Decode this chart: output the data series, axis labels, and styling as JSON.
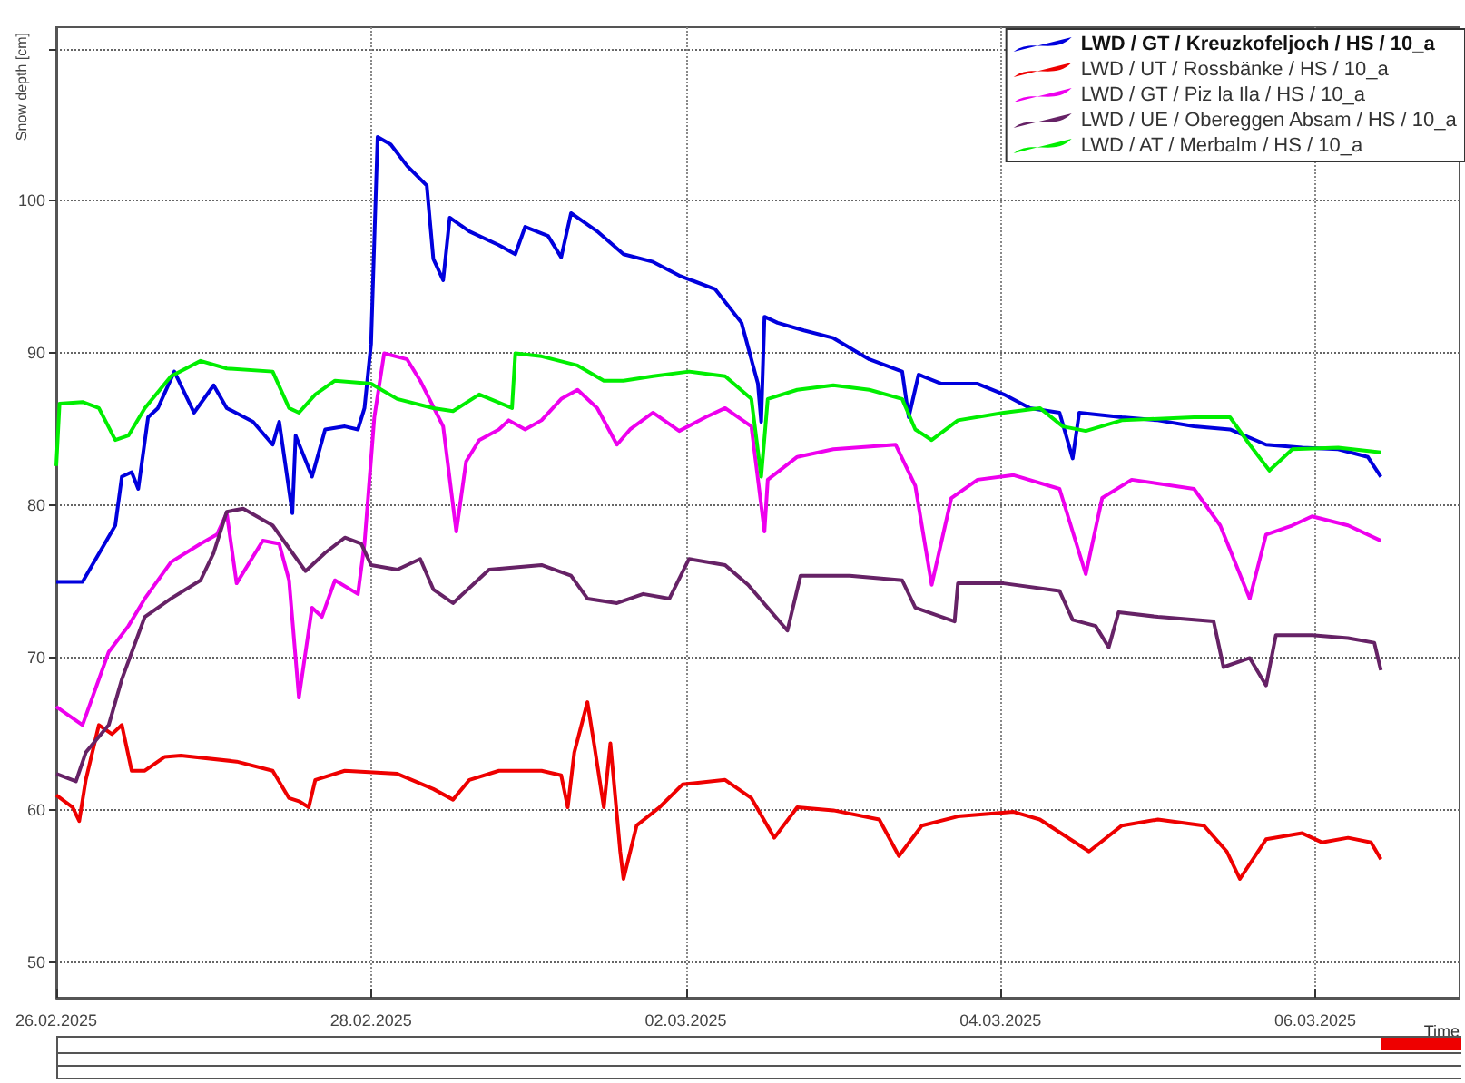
{
  "chart_data": {
    "type": "line",
    "ylabel": "Snow depth [cm]",
    "xlabel": "Time",
    "xlim": [
      "2025-02-26T00:00",
      "2025-03-06T22:00"
    ],
    "xticks": [
      {
        "value": "2025-02-26",
        "label": "26.02.2025"
      },
      {
        "value": "2025-02-28",
        "label": "28.02.2025"
      },
      {
        "value": "2025-03-02",
        "label": "02.03.2025"
      },
      {
        "value": "2025-03-04",
        "label": "04.03.2025"
      },
      {
        "value": "2025-03-06",
        "label": "06.03.2025"
      }
    ],
    "ylim": [
      47.7,
      111.4
    ],
    "yticks": [
      50,
      60,
      70,
      80,
      90,
      100,
      {
        "value": 110,
        "label": null
      }
    ],
    "grid": true,
    "legend": "top right",
    "marker": "none",
    "line_style": "solid",
    "series": [
      {
        "name": "LWD / GT / Kreuzkofeljoch / HS / 10_a",
        "color": "#0000dd",
        "x": [
          "2025-02-26T00:00",
          "2025-02-26T04:00",
          "2025-02-26T09:00",
          "2025-02-26T10:00",
          "2025-02-26T11:30",
          "2025-02-26T12:30",
          "2025-02-26T14:00",
          "2025-02-26T15:30",
          "2025-02-26T18:00",
          "2025-02-26T21:00",
          "2025-02-27T00:00",
          "2025-02-27T02:00",
          "2025-02-27T06:00",
          "2025-02-27T09:00",
          "2025-02-27T10:00",
          "2025-02-27T12:00",
          "2025-02-27T12:30",
          "2025-02-27T15:00",
          "2025-02-27T17:00",
          "2025-02-27T20:00",
          "2025-02-27T22:00",
          "2025-02-27T23:00",
          "2025-02-28T00:00",
          "2025-02-28T01:00",
          "2025-02-28T03:00",
          "2025-02-28T05:30",
          "2025-02-28T08:30",
          "2025-02-28T09:30",
          "2025-02-28T11:00",
          "2025-02-28T12:00",
          "2025-02-28T15:00",
          "2025-02-28T19:30",
          "2025-02-28T22:00",
          "2025-02-28T23:30",
          "2025-03-01T03:00",
          "2025-03-01T05:00",
          "2025-03-01T06:30",
          "2025-03-01T10:30",
          "2025-03-01T14:30",
          "2025-03-01T19:00",
          "2025-03-01T23:00",
          "2025-03-02T04:30",
          "2025-03-02T08:30",
          "2025-03-02T11:00",
          "2025-03-02T11:30",
          "2025-03-02T12:00",
          "2025-03-02T14:00",
          "2025-03-02T18:00",
          "2025-03-02T22:30",
          "2025-03-03T04:00",
          "2025-03-03T09:00",
          "2025-03-03T10:00",
          "2025-03-03T11:30",
          "2025-03-03T15:00",
          "2025-03-03T20:30",
          "2025-03-04T00:30",
          "2025-03-04T04:30",
          "2025-03-04T09:00",
          "2025-03-04T11:00",
          "2025-03-04T12:00",
          "2025-03-04T18:30",
          "2025-03-05T00:00",
          "2025-03-05T05:30",
          "2025-03-05T11:00",
          "2025-03-05T16:30",
          "2025-03-05T22:00",
          "2025-03-06T03:30",
          "2025-03-06T08:00",
          "2025-03-06T10:00"
        ],
        "values": [
          75.0,
          75.0,
          78.7,
          81.9,
          82.2,
          81.1,
          85.8,
          86.4,
          88.8,
          86.1,
          87.9,
          86.4,
          85.5,
          84.0,
          85.5,
          79.5,
          84.6,
          81.9,
          85.0,
          85.2,
          85.0,
          86.4,
          90.6,
          104.2,
          103.7,
          102.3,
          101.0,
          96.2,
          94.8,
          98.9,
          98.0,
          97.1,
          96.5,
          98.3,
          97.7,
          96.3,
          99.2,
          98.0,
          96.5,
          96.0,
          95.1,
          94.2,
          92.0,
          88.0,
          85.5,
          92.4,
          92.0,
          91.5,
          91.0,
          89.6,
          88.8,
          85.8,
          88.6,
          88.0,
          88.0,
          87.3,
          86.4,
          86.1,
          83.1,
          86.1,
          85.8,
          85.6,
          85.2,
          85.0,
          84.0,
          83.8,
          83.7,
          83.2,
          81.9
        ]
      },
      {
        "name": "LWD / UT / Rossbänke / HS / 10_a",
        "color": "#ee0000",
        "x": [
          "2025-02-26T00:00",
          "2025-02-26T02:30",
          "2025-02-26T03:30",
          "2025-02-26T04:30",
          "2025-02-26T06:30",
          "2025-02-26T08:30",
          "2025-02-26T10:00",
          "2025-02-26T11:30",
          "2025-02-26T13:30",
          "2025-02-26T16:30",
          "2025-02-26T19:00",
          "2025-02-27T03:30",
          "2025-02-27T09:00",
          "2025-02-27T11:30",
          "2025-02-27T13:00",
          "2025-02-27T14:30",
          "2025-02-27T15:30",
          "2025-02-27T20:00",
          "2025-02-28T04:00",
          "2025-02-28T09:30",
          "2025-02-28T12:30",
          "2025-02-28T15:00",
          "2025-02-28T19:30",
          "2025-03-01T02:00",
          "2025-03-01T05:00",
          "2025-03-01T06:00",
          "2025-03-01T07:00",
          "2025-03-01T09:00",
          "2025-03-01T10:00",
          "2025-03-01T11:30",
          "2025-03-01T12:30",
          "2025-03-01T14:00",
          "2025-03-01T14:30",
          "2025-03-01T16:30",
          "2025-03-01T20:00",
          "2025-03-01T23:30",
          "2025-03-02T06:00",
          "2025-03-02T10:00",
          "2025-03-02T13:30",
          "2025-03-02T17:00",
          "2025-03-02T22:30",
          "2025-03-03T05:30",
          "2025-03-03T08:30",
          "2025-03-03T12:00",
          "2025-03-03T17:30",
          "2025-03-04T02:00",
          "2025-03-04T06:00",
          "2025-03-04T13:30",
          "2025-03-04T18:30",
          "2025-03-05T00:00",
          "2025-03-05T07:00",
          "2025-03-05T10:30",
          "2025-03-05T12:30",
          "2025-03-05T16:30",
          "2025-03-05T22:00",
          "2025-03-06T01:00",
          "2025-03-06T05:00",
          "2025-03-06T08:30",
          "2025-03-06T10:00"
        ],
        "values": [
          61.0,
          60.2,
          59.3,
          62.0,
          65.6,
          65.0,
          65.6,
          62.6,
          62.6,
          63.5,
          63.6,
          63.2,
          62.6,
          60.8,
          60.6,
          60.2,
          62.0,
          62.6,
          62.4,
          61.4,
          60.7,
          62.0,
          62.6,
          62.6,
          62.3,
          60.2,
          63.8,
          67.1,
          64.4,
          60.2,
          64.4,
          57.3,
          55.5,
          59.0,
          60.2,
          61.7,
          62.0,
          60.8,
          58.2,
          60.2,
          60.0,
          59.4,
          57.0,
          59.0,
          59.6,
          59.9,
          59.4,
          57.3,
          59.0,
          59.4,
          59.0,
          57.3,
          55.5,
          58.1,
          58.5,
          57.9,
          58.2,
          57.9,
          56.8
        ]
      },
      {
        "name": "LWD / GT / Piz la Ila / HS / 10_a",
        "color": "#ee00ee",
        "x": [
          "2025-02-26T00:00",
          "2025-02-26T04:00",
          "2025-02-26T06:00",
          "2025-02-26T08:00",
          "2025-02-26T11:00",
          "2025-02-26T13:30",
          "2025-02-26T17:30",
          "2025-02-26T22:00",
          "2025-02-27T00:30",
          "2025-02-27T02:00",
          "2025-02-27T03:30",
          "2025-02-27T07:30",
          "2025-02-27T10:00",
          "2025-02-27T11:30",
          "2025-02-27T13:00",
          "2025-02-27T15:00",
          "2025-02-27T16:30",
          "2025-02-27T18:30",
          "2025-02-27T22:00",
          "2025-02-27T23:00",
          "2025-02-28T00:30",
          "2025-02-28T02:00",
          "2025-02-28T05:30",
          "2025-02-28T07:30",
          "2025-02-28T11:00",
          "2025-02-28T13:00",
          "2025-02-28T14:30",
          "2025-02-28T16:30",
          "2025-02-28T19:30",
          "2025-02-28T21:00",
          "2025-02-28T23:30",
          "2025-03-01T02:00",
          "2025-03-01T05:00",
          "2025-03-01T07:30",
          "2025-03-01T10:30",
          "2025-03-01T13:30",
          "2025-03-01T15:30",
          "2025-03-01T19:00",
          "2025-03-01T23:00",
          "2025-03-02T03:00",
          "2025-03-02T06:00",
          "2025-03-02T10:00",
          "2025-03-02T12:00",
          "2025-03-02T12:30",
          "2025-03-02T17:00",
          "2025-03-02T22:30",
          "2025-03-03T08:00",
          "2025-03-03T11:00",
          "2025-03-03T13:30",
          "2025-03-03T16:30",
          "2025-03-03T20:30",
          "2025-03-04T02:00",
          "2025-03-04T09:00",
          "2025-03-04T13:00",
          "2025-03-04T15:30",
          "2025-03-04T20:00",
          "2025-03-05T05:30",
          "2025-03-05T09:30",
          "2025-03-05T14:00",
          "2025-03-05T16:30",
          "2025-03-05T20:30",
          "2025-03-05T23:30",
          "2025-03-06T05:00",
          "2025-03-06T10:00"
        ],
        "values": [
          66.8,
          65.6,
          68.0,
          70.4,
          72.1,
          73.9,
          76.3,
          77.5,
          78.1,
          79.5,
          74.9,
          77.7,
          77.5,
          75.1,
          67.4,
          73.3,
          72.7,
          75.1,
          74.2,
          77.5,
          85.8,
          90.0,
          89.6,
          88.2,
          85.2,
          78.3,
          82.9,
          84.3,
          85.0,
          85.6,
          85.0,
          85.6,
          87.0,
          87.6,
          86.4,
          84.0,
          85.0,
          86.1,
          84.9,
          85.8,
          86.4,
          85.2,
          78.3,
          81.7,
          83.2,
          83.7,
          84.0,
          81.3,
          74.8,
          80.5,
          81.7,
          82.0,
          81.1,
          75.5,
          80.5,
          81.7,
          81.1,
          78.7,
          73.9,
          78.1,
          78.7,
          79.3,
          78.7,
          77.7
        ]
      },
      {
        "name": "LWD / UE / Obereggen Absam / HS / 10_a",
        "color": "#662266",
        "x": [
          "2025-02-26T00:00",
          "2025-02-26T03:00",
          "2025-02-26T04:30",
          "2025-02-26T08:00",
          "2025-02-26T10:00",
          "2025-02-26T13:30",
          "2025-02-26T17:30",
          "2025-02-26T22:00",
          "2025-02-27T00:00",
          "2025-02-27T02:00",
          "2025-02-27T04:30",
          "2025-02-27T09:00",
          "2025-02-27T12:00",
          "2025-02-27T14:00",
          "2025-02-27T17:00",
          "2025-02-27T20:00",
          "2025-02-27T22:30",
          "2025-02-28T00:00",
          "2025-02-28T04:00",
          "2025-02-28T07:30",
          "2025-02-28T09:30",
          "2025-02-28T12:30",
          "2025-02-28T15:30",
          "2025-02-28T18:00",
          "2025-03-01T02:00",
          "2025-03-01T06:30",
          "2025-03-01T09:00",
          "2025-03-01T13:30",
          "2025-03-01T17:30",
          "2025-03-01T21:30",
          "2025-03-02T00:30",
          "2025-03-02T06:00",
          "2025-03-02T09:30",
          "2025-03-02T15:30",
          "2025-03-02T17:30",
          "2025-03-03T01:00",
          "2025-03-03T09:00",
          "2025-03-03T11:00",
          "2025-03-03T15:00",
          "2025-03-03T17:00",
          "2025-03-03T17:30",
          "2025-03-04T00:30",
          "2025-03-04T09:00",
          "2025-03-04T11:00",
          "2025-03-04T14:30",
          "2025-03-04T16:30",
          "2025-03-04T18:00",
          "2025-03-05T00:00",
          "2025-03-05T08:30",
          "2025-03-05T10:00",
          "2025-03-05T14:00",
          "2025-03-05T16:30",
          "2025-03-05T18:00",
          "2025-03-05T23:30",
          "2025-03-06T05:00",
          "2025-03-06T09:00",
          "2025-03-06T10:00"
        ],
        "values": [
          62.4,
          61.9,
          63.8,
          65.6,
          68.6,
          72.7,
          73.9,
          75.1,
          76.9,
          79.6,
          79.8,
          78.7,
          76.9,
          75.7,
          76.9,
          77.9,
          77.5,
          76.1,
          75.8,
          76.5,
          74.5,
          73.6,
          74.8,
          75.8,
          76.1,
          75.4,
          73.9,
          73.6,
          74.2,
          73.9,
          76.5,
          76.1,
          74.8,
          71.8,
          75.4,
          75.4,
          75.1,
          73.3,
          72.7,
          72.4,
          74.9,
          74.9,
          74.4,
          72.5,
          72.1,
          70.7,
          73.0,
          72.7,
          72.4,
          69.4,
          70.0,
          68.2,
          71.5,
          71.5,
          71.3,
          71.0,
          69.2
        ]
      },
      {
        "name": "LWD / AT / Merbalm / HS / 10_a",
        "color": "#00ee00",
        "x": [
          "2025-02-26T00:00",
          "2025-02-26T00:30",
          "2025-02-26T04:00",
          "2025-02-26T06:30",
          "2025-02-26T09:00",
          "2025-02-26T11:00",
          "2025-02-26T13:30",
          "2025-02-26T17:30",
          "2025-02-26T22:00",
          "2025-02-27T02:00",
          "2025-02-27T09:00",
          "2025-02-27T11:30",
          "2025-02-27T13:00",
          "2025-02-27T15:30",
          "2025-02-27T18:30",
          "2025-02-28T00:00",
          "2025-02-28T04:00",
          "2025-02-28T09:30",
          "2025-02-28T12:30",
          "2025-02-28T16:30",
          "2025-02-28T21:30",
          "2025-02-28T22:00",
          "2025-03-01T02:00",
          "2025-03-01T07:30",
          "2025-03-01T11:30",
          "2025-03-01T14:30",
          "2025-03-01T19:00",
          "2025-03-02T00:30",
          "2025-03-02T06:00",
          "2025-03-02T10:00",
          "2025-03-02T11:30",
          "2025-03-02T12:30",
          "2025-03-02T17:00",
          "2025-03-02T22:30",
          "2025-03-03T04:00",
          "2025-03-03T09:00",
          "2025-03-03T11:00",
          "2025-03-03T13:30",
          "2025-03-03T17:30",
          "2025-03-04T00:30",
          "2025-03-04T06:00",
          "2025-03-04T09:30",
          "2025-03-04T13:00",
          "2025-03-04T18:30",
          "2025-03-05T05:30",
          "2025-03-05T11:00",
          "2025-03-05T14:00",
          "2025-03-05T17:00",
          "2025-03-05T20:30",
          "2025-03-06T03:30",
          "2025-03-06T10:00"
        ],
        "values": [
          82.6,
          86.7,
          86.8,
          86.4,
          84.3,
          84.6,
          86.4,
          88.5,
          89.5,
          89.0,
          88.8,
          86.4,
          86.1,
          87.3,
          88.2,
          88.0,
          87.0,
          86.4,
          86.2,
          87.3,
          86.4,
          90.0,
          89.8,
          89.2,
          88.2,
          88.2,
          88.5,
          88.8,
          88.5,
          87.0,
          81.9,
          87.0,
          87.6,
          87.9,
          87.6,
          87.0,
          85.0,
          84.3,
          85.6,
          86.1,
          86.4,
          85.2,
          84.9,
          85.6,
          85.8,
          85.8,
          84.0,
          82.3,
          83.7,
          83.8,
          83.5
        ]
      }
    ]
  }
}
